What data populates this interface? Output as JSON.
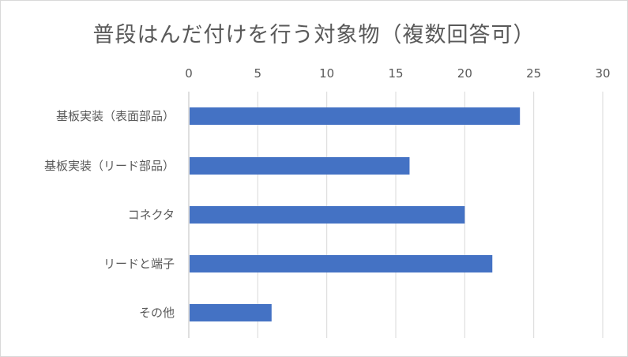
{
  "chart_data": {
    "type": "bar",
    "orientation": "horizontal",
    "title": "普段はんだ付けを行う対象物（複数回答可）",
    "categories": [
      "基板実装（表面部品）",
      "基板実装（リード部品）",
      "コネクタ",
      "リードと端子",
      "その他"
    ],
    "values": [
      24,
      16,
      20,
      22,
      6
    ],
    "xlim": [
      0,
      30
    ],
    "x_ticks": [
      "0",
      "5",
      "10",
      "15",
      "20",
      "25",
      "30"
    ],
    "x_axis_position": "top",
    "grid": true,
    "legend": "none",
    "bar_color": "#4472c4",
    "grid_color": "#d9d9d9"
  }
}
